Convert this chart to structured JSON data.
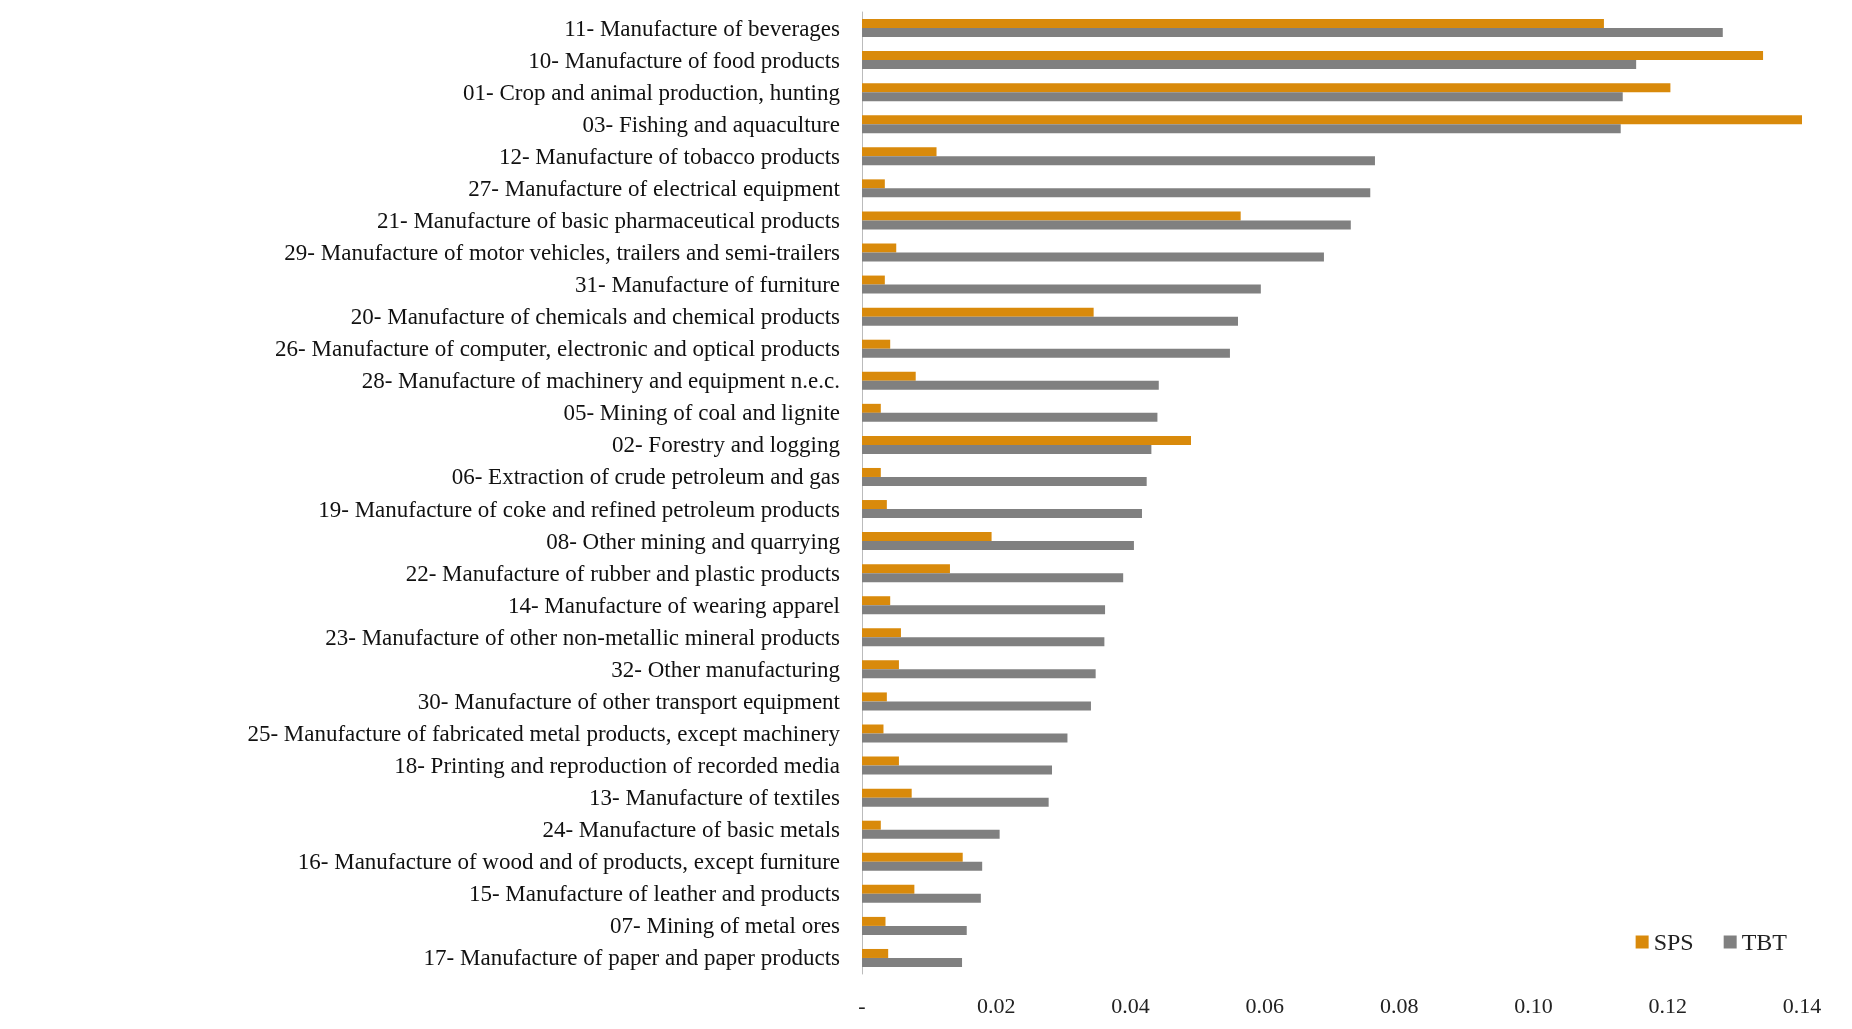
{
  "chart_data": {
    "type": "bar",
    "orientation": "horizontal",
    "categories": [
      "11- Manufacture of beverages",
      "10- Manufacture of food products",
      "01- Crop and animal production, hunting",
      "03- Fishing and aquaculture",
      "12- Manufacture of tobacco products",
      "27- Manufacture of electrical equipment",
      "21- Manufacture of basic pharmaceutical products",
      "29- Manufacture of motor vehicles, trailers and semi-trailers",
      "31- Manufacture of furniture",
      "20- Manufacture of chemicals and chemical products",
      "26- Manufacture of computer, electronic and optical products",
      "28- Manufacture of machinery and equipment n.e.c.",
      "05- Mining of coal and lignite",
      "02- Forestry and logging",
      "06- Extraction of crude petroleum and gas",
      "19- Manufacture of coke and refined petroleum products",
      "08- Other mining and quarrying",
      "22- Manufacture of rubber and plastic products",
      "14- Manufacture of wearing apparel",
      "23- Manufacture of other non-metallic mineral products",
      "32- Other manufacturing",
      "30- Manufacture of other transport equipment",
      "25- Manufacture of fabricated metal products, except machinery",
      "18- Printing and reproduction of recorded media",
      "13- Manufacture of textiles",
      "24- Manufacture of basic metals",
      "16- Manufacture of wood and of products, except furniture",
      "15- Manufacture of leather and products",
      "07- Mining of metal ores",
      "17- Manufacture of paper and paper products"
    ],
    "series": [
      {
        "name": "SPS",
        "color": "#d98a0b",
        "values": [
          0.1105,
          0.1342,
          0.1204,
          0.14,
          0.0111,
          0.0034,
          0.0564,
          0.0051,
          0.0034,
          0.0345,
          0.0042,
          0.008,
          0.0028,
          0.049,
          0.0028,
          0.0037,
          0.0193,
          0.0131,
          0.0042,
          0.0058,
          0.0055,
          0.0037,
          0.0032,
          0.0055,
          0.0074,
          0.0028,
          0.015,
          0.0078,
          0.0035,
          0.0039
        ]
      },
      {
        "name": "TBT",
        "color": "#808080",
        "values": [
          0.1282,
          0.1153,
          0.1133,
          0.113,
          0.0764,
          0.0757,
          0.0728,
          0.0688,
          0.0594,
          0.056,
          0.0548,
          0.0442,
          0.044,
          0.0431,
          0.0424,
          0.0417,
          0.0405,
          0.0389,
          0.0362,
          0.0361,
          0.0348,
          0.0341,
          0.0306,
          0.0283,
          0.0278,
          0.0205,
          0.0179,
          0.0177,
          0.0156,
          0.0149
        ]
      }
    ],
    "xlim": [
      0,
      0.14
    ],
    "xticks": [
      {
        "value": 0,
        "label": "-"
      },
      {
        "value": 0.02,
        "label": "0.02"
      },
      {
        "value": 0.04,
        "label": "0.04"
      },
      {
        "value": 0.06,
        "label": "0.06"
      },
      {
        "value": 0.08,
        "label": "0.08"
      },
      {
        "value": 0.1,
        "label": "0.10"
      },
      {
        "value": 0.12,
        "label": "0.12"
      },
      {
        "value": 0.14,
        "label": "0.14"
      }
    ],
    "grid": false,
    "legend": "bottom right"
  }
}
